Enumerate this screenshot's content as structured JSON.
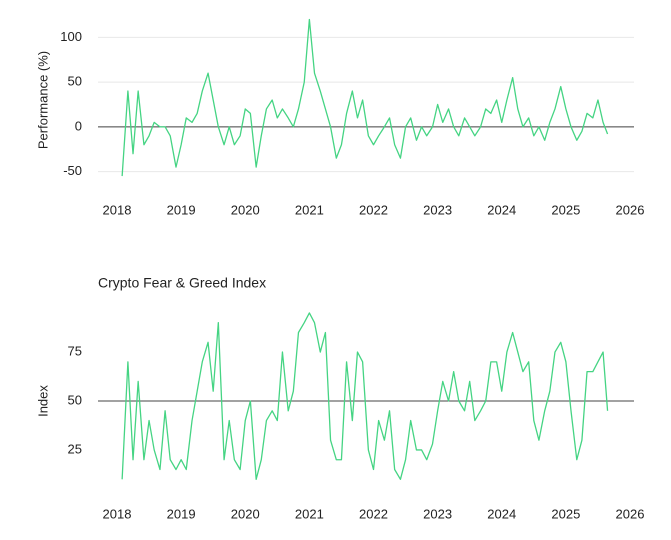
{
  "chart_data": [
    {
      "type": "line",
      "y_label": "Performance (%)",
      "color": "#45d483",
      "xlim": [
        2018,
        2026
      ],
      "xticks": [
        2018,
        2019,
        2020,
        2021,
        2022,
        2023,
        2024,
        2025,
        2026
      ],
      "ylim": [
        -65,
        125
      ],
      "yticks": [
        -50,
        0,
        50,
        100
      ],
      "grid": true,
      "reference_line": 0,
      "x": [
        2018.08,
        2018.17,
        2018.25,
        2018.33,
        2018.42,
        2018.5,
        2018.58,
        2018.67,
        2018.75,
        2018.83,
        2018.92,
        2019.0,
        2019.08,
        2019.17,
        2019.25,
        2019.33,
        2019.42,
        2019.5,
        2019.58,
        2019.67,
        2019.75,
        2019.83,
        2019.92,
        2020.0,
        2020.08,
        2020.17,
        2020.25,
        2020.33,
        2020.42,
        2020.5,
        2020.58,
        2020.67,
        2020.75,
        2020.83,
        2020.92,
        2021.0,
        2021.08,
        2021.17,
        2021.25,
        2021.33,
        2021.42,
        2021.5,
        2021.58,
        2021.67,
        2021.75,
        2021.83,
        2021.92,
        2022.0,
        2022.08,
        2022.17,
        2022.25,
        2022.33,
        2022.42,
        2022.5,
        2022.58,
        2022.67,
        2022.75,
        2022.83,
        2022.92,
        2023.0,
        2023.08,
        2023.17,
        2023.25,
        2023.33,
        2023.42,
        2023.5,
        2023.58,
        2023.67,
        2023.75,
        2023.83,
        2023.92,
        2024.0,
        2024.08,
        2024.17,
        2024.25,
        2024.33,
        2024.42,
        2024.5,
        2024.58,
        2024.67,
        2024.75,
        2024.83,
        2024.92,
        2025.0,
        2025.08,
        2025.17,
        2025.25,
        2025.33,
        2025.42,
        2025.5,
        2025.58,
        2025.65
      ],
      "values": [
        -55,
        40,
        -30,
        40,
        -20,
        -10,
        5,
        0,
        0,
        -10,
        -45,
        -20,
        10,
        5,
        15,
        40,
        60,
        30,
        0,
        -20,
        0,
        -20,
        -10,
        20,
        15,
        -45,
        -10,
        20,
        30,
        10,
        20,
        10,
        0,
        20,
        50,
        120,
        60,
        40,
        20,
        0,
        -35,
        -20,
        15,
        40,
        10,
        30,
        -10,
        -20,
        -10,
        0,
        10,
        -20,
        -35,
        0,
        10,
        -15,
        0,
        -10,
        0,
        25,
        5,
        20,
        0,
        -10,
        10,
        0,
        -10,
        0,
        20,
        15,
        30,
        5,
        30,
        55,
        20,
        0,
        10,
        -10,
        0,
        -15,
        5,
        20,
        45,
        20,
        0,
        -15,
        -5,
        15,
        10,
        30,
        5,
        -8
      ]
    },
    {
      "type": "line",
      "title": "Crypto Fear & Greed Index",
      "y_label": "Index",
      "color": "#45d483",
      "xlim": [
        2018,
        2026
      ],
      "xticks": [
        2018,
        2019,
        2020,
        2021,
        2022,
        2023,
        2024,
        2025,
        2026
      ],
      "ylim": [
        3,
        97
      ],
      "yticks": [
        25,
        50,
        75
      ],
      "grid": false,
      "reference_line": 50,
      "x": [
        2018.08,
        2018.17,
        2018.25,
        2018.33,
        2018.42,
        2018.5,
        2018.58,
        2018.67,
        2018.75,
        2018.83,
        2018.92,
        2019.0,
        2019.08,
        2019.17,
        2019.25,
        2019.33,
        2019.42,
        2019.5,
        2019.58,
        2019.67,
        2019.75,
        2019.83,
        2019.92,
        2020.0,
        2020.08,
        2020.17,
        2020.25,
        2020.33,
        2020.42,
        2020.5,
        2020.58,
        2020.67,
        2020.75,
        2020.83,
        2020.92,
        2021.0,
        2021.08,
        2021.17,
        2021.25,
        2021.33,
        2021.42,
        2021.5,
        2021.58,
        2021.67,
        2021.75,
        2021.83,
        2021.92,
        2022.0,
        2022.08,
        2022.17,
        2022.25,
        2022.33,
        2022.42,
        2022.5,
        2022.58,
        2022.67,
        2022.75,
        2022.83,
        2022.92,
        2023.0,
        2023.08,
        2023.17,
        2023.25,
        2023.33,
        2023.42,
        2023.5,
        2023.58,
        2023.67,
        2023.75,
        2023.83,
        2023.92,
        2024.0,
        2024.08,
        2024.17,
        2024.25,
        2024.33,
        2024.42,
        2024.5,
        2024.58,
        2024.67,
        2024.75,
        2024.83,
        2024.92,
        2025.0,
        2025.08,
        2025.17,
        2025.25,
        2025.33,
        2025.42,
        2025.5,
        2025.58,
        2025.65
      ],
      "values": [
        10,
        70,
        20,
        60,
        20,
        40,
        25,
        15,
        45,
        20,
        15,
        20,
        15,
        40,
        55,
        70,
        80,
        55,
        90,
        20,
        40,
        20,
        15,
        40,
        50,
        10,
        20,
        40,
        45,
        40,
        75,
        45,
        55,
        85,
        90,
        95,
        90,
        75,
        85,
        30,
        20,
        20,
        70,
        40,
        75,
        70,
        25,
        15,
        40,
        30,
        45,
        15,
        10,
        20,
        40,
        25,
        25,
        20,
        28,
        45,
        60,
        50,
        65,
        50,
        45,
        60,
        40,
        45,
        50,
        70,
        70,
        55,
        75,
        85,
        75,
        65,
        70,
        40,
        30,
        45,
        55,
        75,
        80,
        70,
        45,
        20,
        30,
        65,
        65,
        70,
        75,
        45
      ]
    }
  ]
}
